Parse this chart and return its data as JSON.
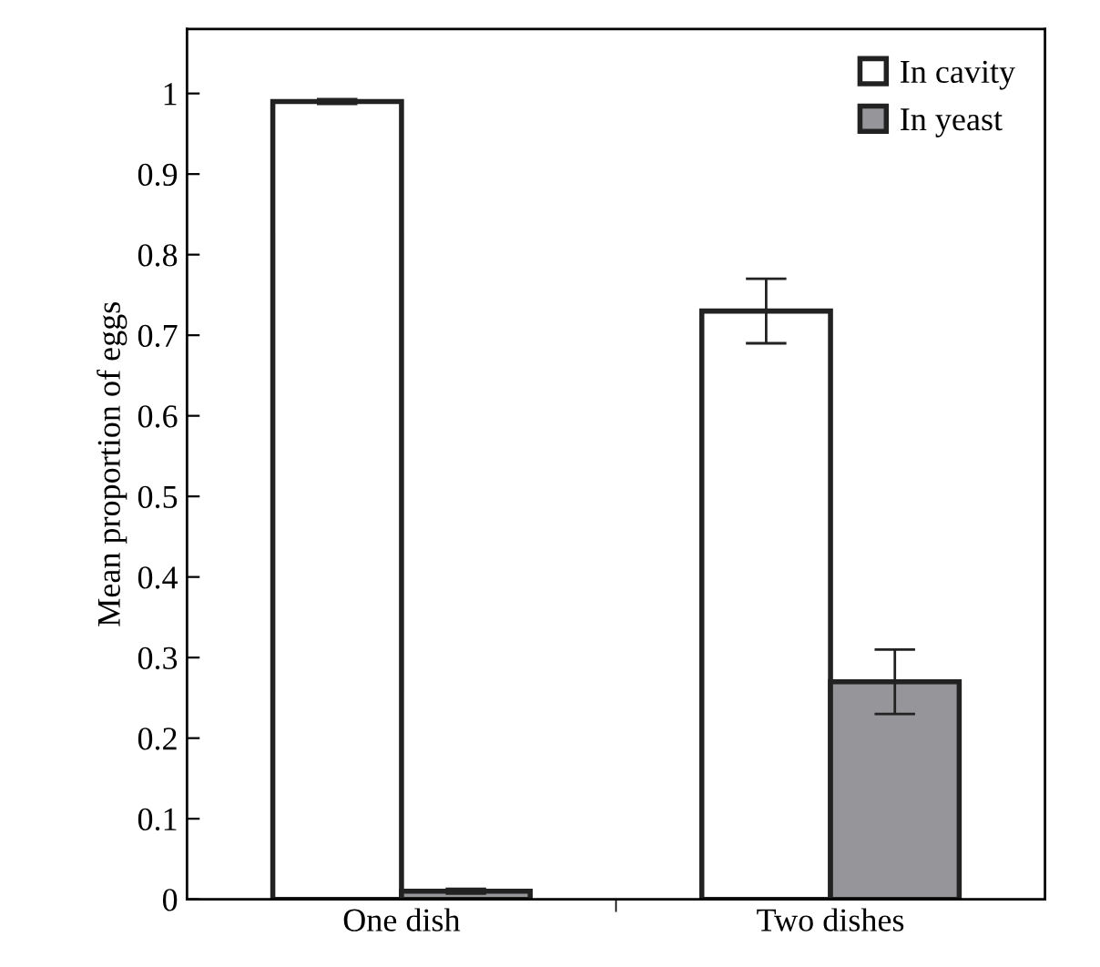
{
  "chart_data": {
    "type": "bar",
    "ylabel": "Mean proportion of eggs",
    "categories": [
      "One dish",
      "Two dishes"
    ],
    "series": [
      {
        "name": "In cavity",
        "color": "#ffffff",
        "values": [
          0.99,
          0.73
        ],
        "errors": [
          0.003,
          0.04
        ]
      },
      {
        "name": "In yeast",
        "color": "#96969a",
        "values": [
          0.01,
          0.27
        ],
        "errors": [
          0.003,
          0.04
        ]
      }
    ],
    "ylim": [
      0,
      1.08
    ],
    "yticks": [
      0,
      0.1,
      0.2,
      0.3,
      0.4,
      0.5,
      0.6,
      0.7,
      0.8,
      0.9,
      1
    ],
    "grid": false,
    "legend": "top right"
  }
}
